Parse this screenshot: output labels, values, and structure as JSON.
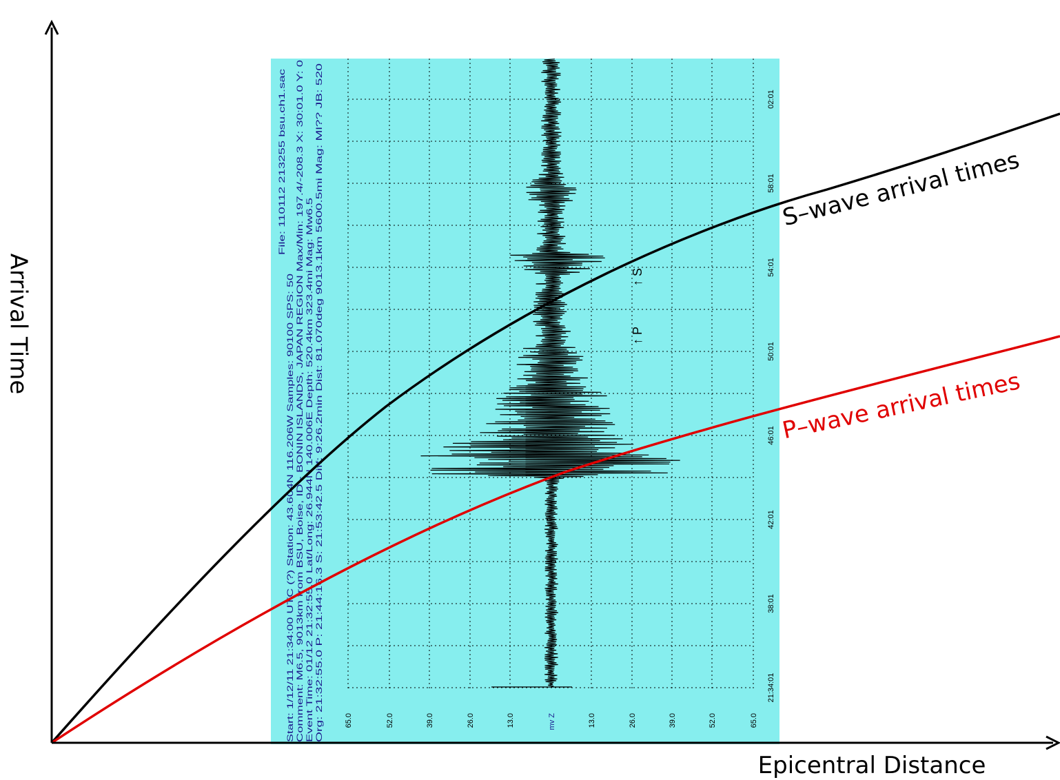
{
  "axes": {
    "y_label": "Arrival Time",
    "x_label": "Epicentral Distance"
  },
  "curves": {
    "s_label": "S–wave arrival times",
    "p_label": "P–wave arrival times"
  },
  "seismogram": {
    "header": [
      "Start: 1/12/11 21:34:00 UTC (?) Station: 43.604N 116.206W Samples: 90100 SPS: 50",
      "Comment: M6.5, 9013km from BSU, Boise, ID - BONIN ISLANDS, JAPAN REGION  Max/Min: 197.4/-208.3 X: 30:01.0 Y: 0",
      "Event Time: 01/12 21:32:55.0 Lat/Long: 26.944N 140.006E Depth: 520.4km 323.4mi Mag: Mw6.5",
      "Org: 21:32:55.0 P: 21:44:16.3 S: 21:53:42.5 Diff: 9:26.2min Dist: 81.070deg 9013.1km 5600.5mi  Mag: Ml?? JB: 520"
    ],
    "file": "File: 110112 213255 bsu.ch1.sac",
    "amplitude_labels": [
      "65.0",
      "52.0",
      "39.0",
      "26.0",
      "13.0",
      "mv  Z",
      "13.0",
      "26.0",
      "39.0",
      "52.0",
      "65.0"
    ],
    "time_labels": [
      "21:34:01",
      "38:01",
      "42:01",
      "46:01",
      "50:01",
      "54:01",
      "58:01",
      "02:01"
    ],
    "p_marker": "↑ P",
    "s_marker": "↑ S"
  }
}
